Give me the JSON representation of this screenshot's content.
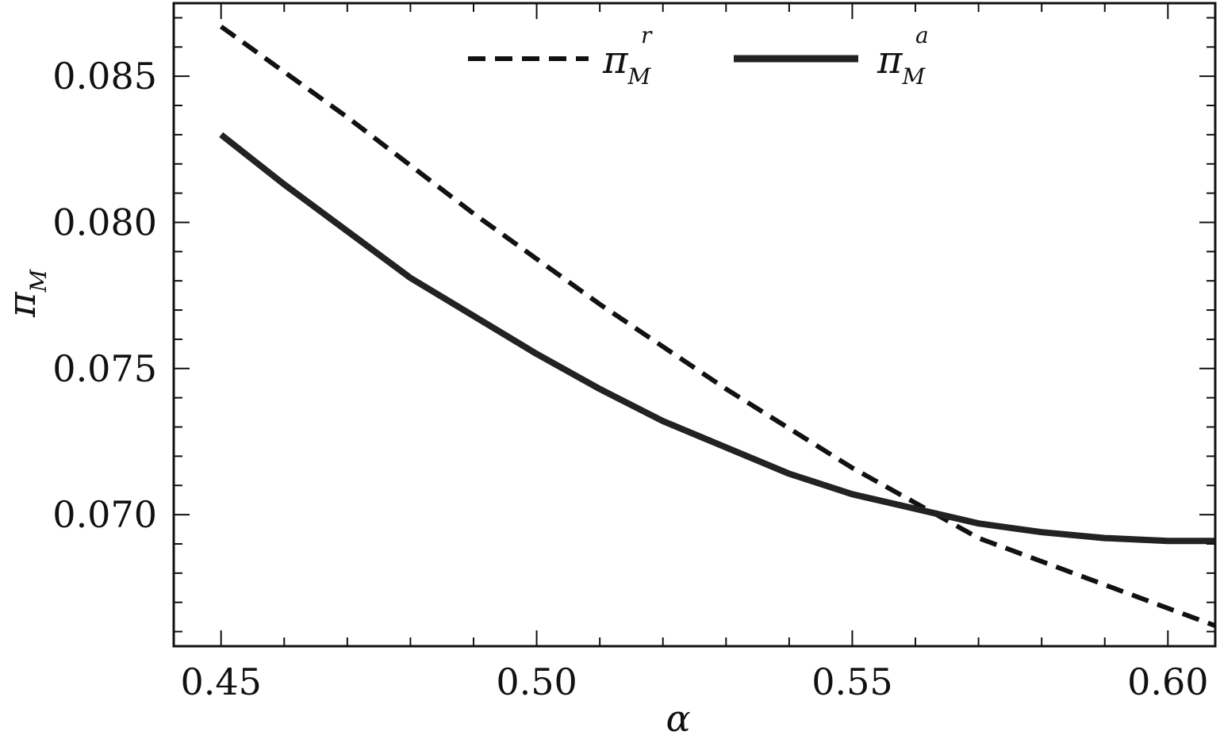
{
  "chart_data": {
    "type": "line",
    "title": "",
    "xlabel": "α",
    "ylabel": {
      "base": "π",
      "sub": "M"
    },
    "xlim": [
      0.4425,
      0.6075
    ],
    "ylim": [
      0.0655,
      0.0875
    ],
    "x_ticks": [
      "0.45",
      "0.50",
      "0.55",
      "0.60"
    ],
    "y_ticks": [
      "0.070",
      "0.075",
      "0.080",
      "0.085"
    ],
    "grid": false,
    "legend_position": "top-center",
    "series": [
      {
        "name": {
          "base": "π",
          "sub": "M",
          "sup": "r"
        },
        "style": "dashed",
        "color": "#111111",
        "x": [
          0.45,
          0.47,
          0.49,
          0.51,
          0.53,
          0.55,
          0.57,
          0.59,
          0.6075
        ],
        "y": [
          0.0867,
          0.0836,
          0.0803,
          0.0772,
          0.0743,
          0.0716,
          0.0692,
          0.0676,
          0.0662
        ]
      },
      {
        "name": {
          "base": "π",
          "sub": "M",
          "sup": "a"
        },
        "style": "solid",
        "color": "#222222",
        "x": [
          0.45,
          0.46,
          0.47,
          0.48,
          0.49,
          0.5,
          0.51,
          0.52,
          0.53,
          0.54,
          0.55,
          0.56,
          0.57,
          0.58,
          0.59,
          0.6,
          0.6075
        ],
        "y": [
          0.083,
          0.0813,
          0.0797,
          0.0781,
          0.0768,
          0.0755,
          0.0743,
          0.0732,
          0.0723,
          0.0714,
          0.0707,
          0.0702,
          0.0697,
          0.0694,
          0.0692,
          0.0691,
          0.0691
        ]
      }
    ]
  }
}
